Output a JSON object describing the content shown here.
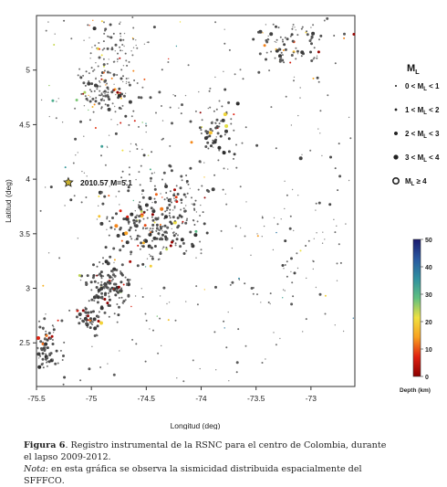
{
  "chart_data": {
    "type": "scatter",
    "xlabel": "Longitud (deg)",
    "ylabel": "Latitud (deg)",
    "xlim": [
      -75.5,
      -72.6
    ],
    "ylim": [
      2.1,
      5.5
    ],
    "x_ticks": [
      -75.5,
      -75,
      -74.5,
      -74,
      -73.5,
      -73
    ],
    "x_tick_labels": [
      "-75.5",
      "-75",
      "-74.5",
      "-74",
      "-73.5",
      "-73"
    ],
    "y_ticks": [
      2.5,
      3,
      3.5,
      4,
      4.5,
      5
    ],
    "y_tick_labels": [
      "2.5",
      "3",
      "3.5",
      "4",
      "4.5",
      "5"
    ],
    "grid": false,
    "annotation": {
      "text": "2010.57 M=5.1",
      "x": -75.21,
      "y": 3.97
    },
    "legend": {
      "title_main": "M",
      "title_sub": "L",
      "placement": "right",
      "entries": [
        {
          "pre": "0 < M",
          "sub": "L",
          "post": " < 1"
        },
        {
          "pre": "1 < M",
          "sub": "L",
          "post": " < 2"
        },
        {
          "pre": "2 < M",
          "sub": "L",
          "post": " < 3"
        },
        {
          "pre": "3 < M",
          "sub": "L",
          "post": " < 4"
        },
        {
          "pre": "M",
          "sub": "L",
          "post": " ≥ 4"
        }
      ]
    },
    "colorbar": {
      "label": "Depth (km)",
      "range": [
        0,
        50
      ],
      "ticks": [
        "0",
        "10",
        "20",
        "30",
        "40",
        "50"
      ],
      "colors": [
        "#8b0000",
        "#e02010",
        "#f8a020",
        "#f0e040",
        "#60c080",
        "#3090a0",
        "#2858a0",
        "#1a1a6e"
      ]
    },
    "clusters": [
      {
        "cx": -74.82,
        "cy": 5.12,
        "sx": 0.16,
        "sy": 0.3,
        "n": 160,
        "m": 1.4,
        "d": 12
      },
      {
        "cx": -74.92,
        "cy": 4.8,
        "sx": 0.12,
        "sy": 0.14,
        "n": 60,
        "m": 1.8,
        "d": 8
      },
      {
        "cx": -73.15,
        "cy": 5.25,
        "sx": 0.18,
        "sy": 0.12,
        "n": 90,
        "m": 1.7,
        "d": 15
      },
      {
        "cx": -73.85,
        "cy": 4.42,
        "sx": 0.1,
        "sy": 0.17,
        "n": 75,
        "m": 2.1,
        "d": 10
      },
      {
        "cx": -74.43,
        "cy": 3.55,
        "sx": 0.2,
        "sy": 0.17,
        "n": 220,
        "m": 2.1,
        "d": 9
      },
      {
        "cx": -74.2,
        "cy": 3.82,
        "sx": 0.13,
        "sy": 0.12,
        "n": 60,
        "m": 1.7,
        "d": 12
      },
      {
        "cx": -74.85,
        "cy": 3.0,
        "sx": 0.12,
        "sy": 0.12,
        "n": 130,
        "m": 2.2,
        "d": 8
      },
      {
        "cx": -75.02,
        "cy": 2.72,
        "sx": 0.06,
        "sy": 0.06,
        "n": 45,
        "m": 2.3,
        "d": 8
      },
      {
        "cx": -75.4,
        "cy": 2.45,
        "sx": 0.07,
        "sy": 0.12,
        "n": 90,
        "m": 1.9,
        "d": 8
      },
      {
        "cx": -74.6,
        "cy": 4.25,
        "sx": 0.35,
        "sy": 0.4,
        "n": 90,
        "m": 1.3,
        "d": 20
      },
      {
        "cx": -73.2,
        "cy": 3.3,
        "sx": 0.4,
        "sy": 0.45,
        "n": 65,
        "m": 1.3,
        "d": 25
      }
    ],
    "background_points": 220,
    "notable_event": {
      "x": -75.21,
      "y": 3.97,
      "ml": 5.1,
      "depth_km": 15
    }
  },
  "caption": {
    "label": "Figura 6",
    "text_1": ". Registro instrumental de la ",
    "org_1": "RSNC",
    "text_2": " para el centro de Colombia, durante el lapso 2009-2012.",
    "note_label": "Nota",
    "note_text": ": en esta gráfica se observa la sismicidad distribuida espacialmente del ",
    "org_2": "SFFFCO",
    "note_end": "."
  }
}
